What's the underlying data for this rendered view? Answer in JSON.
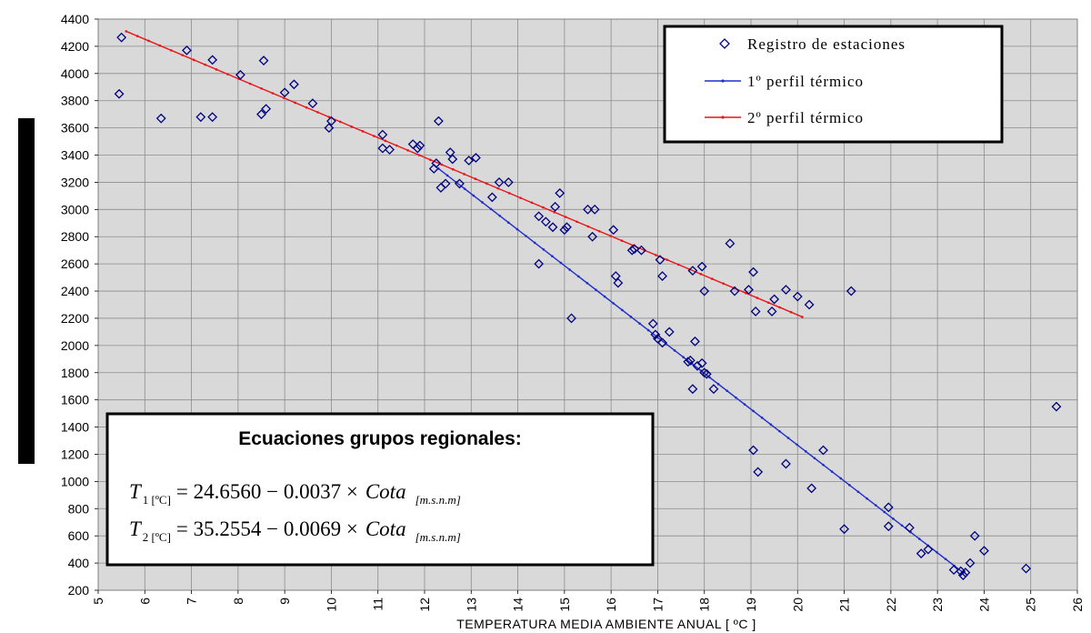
{
  "chart_data": {
    "type": "scatter",
    "xlabel": "TEMPERATURA MEDIA AMBIENTE ANUAL [ ºC ]",
    "ylabel": "",
    "xlim": [
      5,
      26
    ],
    "ylim": [
      200,
      4400
    ],
    "x_ticks": [
      5,
      6,
      7,
      8,
      9,
      10,
      11,
      12,
      13,
      14,
      15,
      16,
      17,
      18,
      19,
      20,
      21,
      22,
      23,
      24,
      25,
      26
    ],
    "y_ticks": [
      200,
      400,
      600,
      800,
      1000,
      1200,
      1400,
      1600,
      1800,
      2000,
      2200,
      2400,
      2600,
      2800,
      3000,
      3200,
      3400,
      3600,
      3800,
      4000,
      4200,
      4400
    ],
    "grid": true,
    "background": "#d9d9d9",
    "legend_position": "top-right",
    "legend": [
      {
        "label": "Registro de estaciones",
        "kind": "marker"
      },
      {
        "label": "1º perfil térmico",
        "kind": "line",
        "color": "#1f2fc8"
      },
      {
        "label": "2º perfil térmico",
        "kind": "line",
        "color": "#e8141a"
      }
    ],
    "series": [
      {
        "name": "Registro de estaciones",
        "kind": "scatter",
        "marker": "diamond",
        "color": "#000080",
        "points": [
          [
            5.45,
            3850
          ],
          [
            5.5,
            4265
          ],
          [
            6.35,
            3670
          ],
          [
            6.9,
            4170
          ],
          [
            7.2,
            3680
          ],
          [
            7.45,
            3680
          ],
          [
            7.45,
            4100
          ],
          [
            8.05,
            3990
          ],
          [
            8.5,
            3700
          ],
          [
            8.55,
            4095
          ],
          [
            8.6,
            3740
          ],
          [
            9.0,
            3860
          ],
          [
            9.2,
            3920
          ],
          [
            9.6,
            3780
          ],
          [
            9.95,
            3600
          ],
          [
            10.0,
            3650
          ],
          [
            11.1,
            3550
          ],
          [
            11.1,
            3450
          ],
          [
            11.25,
            3440
          ],
          [
            11.75,
            3480
          ],
          [
            11.85,
            3450
          ],
          [
            11.9,
            3470
          ],
          [
            12.2,
            3300
          ],
          [
            12.25,
            3340
          ],
          [
            12.3,
            3650
          ],
          [
            12.35,
            3160
          ],
          [
            12.45,
            3190
          ],
          [
            12.55,
            3420
          ],
          [
            12.6,
            3370
          ],
          [
            12.75,
            3190
          ],
          [
            12.95,
            3360
          ],
          [
            13.1,
            3380
          ],
          [
            13.45,
            3090
          ],
          [
            13.6,
            3200
          ],
          [
            13.8,
            3200
          ],
          [
            14.45,
            2950
          ],
          [
            14.45,
            2600
          ],
          [
            14.6,
            2910
          ],
          [
            14.75,
            2870
          ],
          [
            14.8,
            3020
          ],
          [
            14.9,
            3120
          ],
          [
            15.0,
            2850
          ],
          [
            15.05,
            2870
          ],
          [
            15.15,
            2200
          ],
          [
            15.5,
            3000
          ],
          [
            15.6,
            2800
          ],
          [
            15.65,
            3000
          ],
          [
            16.05,
            2850
          ],
          [
            16.1,
            2510
          ],
          [
            16.15,
            2460
          ],
          [
            16.45,
            2700
          ],
          [
            16.5,
            2710
          ],
          [
            16.65,
            2700
          ],
          [
            16.9,
            2160
          ],
          [
            16.95,
            2080
          ],
          [
            17.0,
            2050
          ],
          [
            17.05,
            2630
          ],
          [
            17.1,
            2020
          ],
          [
            17.1,
            2510
          ],
          [
            17.25,
            2100
          ],
          [
            17.65,
            1880
          ],
          [
            17.7,
            1890
          ],
          [
            17.75,
            1680
          ],
          [
            17.75,
            2550
          ],
          [
            17.8,
            2030
          ],
          [
            17.85,
            1850
          ],
          [
            17.95,
            2580
          ],
          [
            17.95,
            1870
          ],
          [
            18.0,
            1800
          ],
          [
            18.0,
            2400
          ],
          [
            18.05,
            1790
          ],
          [
            18.2,
            1680
          ],
          [
            18.55,
            2750
          ],
          [
            18.65,
            2400
          ],
          [
            18.95,
            2410
          ],
          [
            19.05,
            2540
          ],
          [
            19.05,
            1230
          ],
          [
            19.1,
            2250
          ],
          [
            19.15,
            1070
          ],
          [
            19.45,
            2250
          ],
          [
            19.5,
            2340
          ],
          [
            19.75,
            2410
          ],
          [
            19.75,
            1130
          ],
          [
            20.0,
            2360
          ],
          [
            20.25,
            2300
          ],
          [
            20.3,
            950
          ],
          [
            20.55,
            1230
          ],
          [
            21.0,
            650
          ],
          [
            21.15,
            2400
          ],
          [
            21.95,
            810
          ],
          [
            21.95,
            670
          ],
          [
            22.4,
            660
          ],
          [
            22.65,
            470
          ],
          [
            22.8,
            500
          ],
          [
            23.35,
            350
          ],
          [
            23.5,
            340
          ],
          [
            23.55,
            310
          ],
          [
            23.6,
            330
          ],
          [
            23.7,
            400
          ],
          [
            23.8,
            600
          ],
          [
            24.0,
            490
          ],
          [
            24.9,
            360
          ],
          [
            25.55,
            1550
          ]
        ]
      },
      {
        "name": "1º perfil térmico",
        "kind": "line",
        "color": "#1f2fc8",
        "points": [
          [
            12.3,
            3300
          ],
          [
            23.55,
            330
          ]
        ]
      },
      {
        "name": "2º perfil térmico",
        "kind": "line",
        "color": "#e8141a",
        "points": [
          [
            5.6,
            4310
          ],
          [
            20.1,
            2210
          ]
        ]
      }
    ],
    "annotation": {
      "title": "Ecuaciones grupos regionales:",
      "eq1": {
        "T": "T",
        "sub": "1 [ºC]",
        "rhs": "= 24.6560  − 0.0037 ×",
        "var": "Cota",
        "unit": "[m.s.n.m]"
      },
      "eq2": {
        "T": "T",
        "sub": "2 [ºC]",
        "rhs": "= 35.2554  − 0.0069 ×",
        "var": "Cota",
        "unit": "[m.s.n.m]"
      }
    }
  }
}
